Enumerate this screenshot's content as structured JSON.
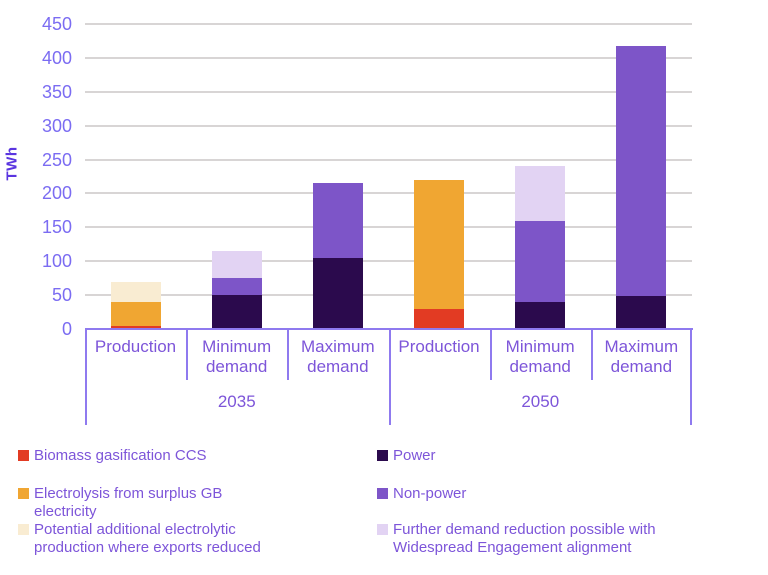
{
  "chart_data": {
    "type": "bar",
    "stacked": true,
    "ylabel": "TWh",
    "ylim": [
      0,
      450
    ],
    "ytick_step": 50,
    "grid": true,
    "legend_position": "bottom",
    "categories": [
      "Production",
      "Minimum demand",
      "Maximum demand",
      "Production",
      "Minimum demand",
      "Maximum demand"
    ],
    "groups": [
      {
        "label": "2035",
        "span": 3
      },
      {
        "label": "2050",
        "span": 3
      }
    ],
    "series": [
      {
        "name": "Biomass gasification CCS",
        "color": "#e23b23",
        "values": [
          5,
          0,
          0,
          30,
          0,
          0
        ]
      },
      {
        "name": "Electrolysis from surplus GB electricity",
        "color": "#f0a632",
        "values": [
          35,
          0,
          0,
          190,
          0,
          0
        ]
      },
      {
        "name": "Potential additional electrolytic production where exports reduced",
        "color": "#f9ecd2",
        "values": [
          30,
          0,
          0,
          0,
          0,
          0
        ]
      },
      {
        "name": "Power",
        "color": "#2b0a4d",
        "values": [
          0,
          50,
          105,
          0,
          40,
          48
        ]
      },
      {
        "name": "Non-power",
        "color": "#7d55c8",
        "values": [
          0,
          25,
          110,
          0,
          120,
          370
        ]
      },
      {
        "name": "Further demand reduction possible with Widespread Engagement alignment",
        "color": "#e2d3f3",
        "values": [
          0,
          40,
          0,
          0,
          80,
          0
        ]
      }
    ],
    "legend_columns": {
      "left": [
        {
          "series": "Biomass gasification CCS",
          "lines": [
            "Biomass gasification CCS"
          ]
        },
        {
          "series": "Electrolysis from surplus GB electricity",
          "lines": [
            "Electrolysis from surplus GB",
            "electricity"
          ]
        },
        {
          "series": "Potential additional electrolytic production where exports reduced",
          "lines": [
            "Potential additional electrolytic",
            "production where exports reduced"
          ]
        }
      ],
      "right": [
        {
          "series": "Power",
          "lines": [
            "Power"
          ]
        },
        {
          "series": "Non-power",
          "lines": [
            "Non-power"
          ]
        },
        {
          "series": "Further demand reduction possible with Widespread Engagement alignment",
          "lines": [
            "Further demand reduction possible with",
            "Widespread Engagement alignment"
          ]
        }
      ]
    }
  }
}
